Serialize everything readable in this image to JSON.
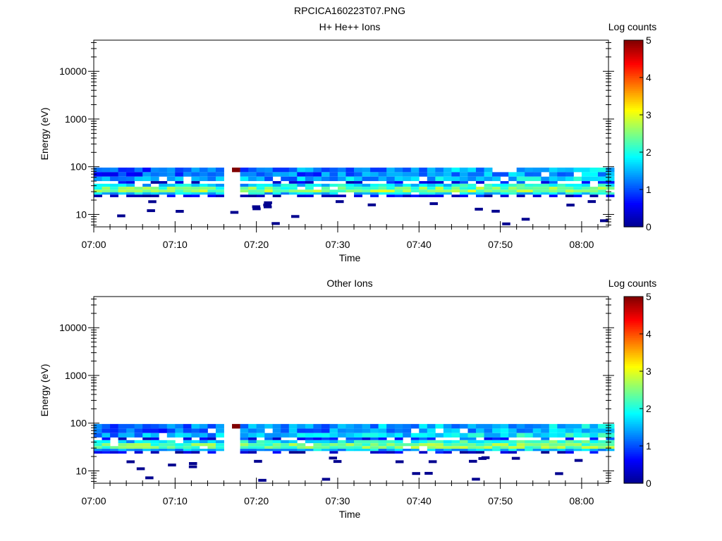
{
  "figure_title": "RPCICA160223T07.PNG",
  "chart_data": [
    {
      "type": "heatmap",
      "title": "H+ He++ Ions",
      "xlabel": "Time",
      "ylabel": "Energy (eV)",
      "x_ticks": [
        "07:00",
        "07:10",
        "07:20",
        "07:30",
        "07:40",
        "07:50",
        "08:00"
      ],
      "x_tick_minutes": [
        0,
        10,
        20,
        30,
        40,
        50,
        60
      ],
      "xlim_minutes": [
        0,
        63.3
      ],
      "y_scale": "log",
      "ylim": [
        5.5,
        45000
      ],
      "y_ticks": [
        "10",
        "100",
        "1000",
        "10000"
      ],
      "y_tick_values": [
        10,
        100,
        1000,
        10000
      ],
      "colorbar_label": "Log counts",
      "colorbar_ticks": [
        "0",
        "1",
        "2",
        "3",
        "4",
        "5"
      ],
      "colorbar_range": [
        0,
        5
      ],
      "colormap": [
        "#00008f",
        "#0000ff",
        "#0080ff",
        "#00ffff",
        "#80ff80",
        "#ffff00",
        "#ff8000",
        "#ff0000",
        "#800000"
      ],
      "grid": false,
      "data_gap_minutes": [
        16.8,
        17.3
      ],
      "energy_bands_eV": [
        {
          "low": 77,
          "high": 96,
          "mean_log_counts": 1.0
        },
        {
          "low": 62,
          "high": 77,
          "mean_log_counts": 0.9
        },
        {
          "low": 50,
          "high": 62,
          "mean_log_counts": 1.2
        },
        {
          "low": 44,
          "high": 50,
          "mean_log_counts": 0.3
        },
        {
          "low": 38,
          "high": 44,
          "mean_log_counts": 1.5
        },
        {
          "low": 33,
          "high": 38,
          "mean_log_counts": 2.3
        },
        {
          "low": 29,
          "high": 33,
          "mean_log_counts": 2.5
        },
        {
          "low": 26,
          "high": 29,
          "mean_log_counts": 1.6
        },
        {
          "low": 23,
          "high": 26,
          "mean_log_counts": 0.4
        }
      ],
      "max_log_counts": 5.0,
      "max_location": {
        "time_minute": 17.5,
        "energy_eV": 85
      }
    },
    {
      "type": "heatmap",
      "title": "Other Ions",
      "xlabel": "Time",
      "ylabel": "Energy (eV)",
      "x_ticks": [
        "07:00",
        "07:10",
        "07:20",
        "07:30",
        "07:40",
        "07:50",
        "08:00"
      ],
      "x_tick_minutes": [
        0,
        10,
        20,
        30,
        40,
        50,
        60
      ],
      "xlim_minutes": [
        0,
        63.3
      ],
      "y_scale": "log",
      "ylim": [
        5.5,
        45000
      ],
      "y_ticks": [
        "10",
        "100",
        "1000",
        "10000"
      ],
      "y_tick_values": [
        10,
        100,
        1000,
        10000
      ],
      "colorbar_label": "Log counts",
      "colorbar_ticks": [
        "0",
        "1",
        "2",
        "3",
        "4",
        "5"
      ],
      "colorbar_range": [
        0,
        5
      ],
      "colormap": [
        "#00008f",
        "#0000ff",
        "#0080ff",
        "#00ffff",
        "#80ff80",
        "#ffff00",
        "#ff8000",
        "#ff0000",
        "#800000"
      ],
      "grid": false,
      "data_gap_minutes": [
        16.8,
        17.3
      ],
      "energy_bands_eV": [
        {
          "low": 77,
          "high": 96,
          "mean_log_counts": 1.1
        },
        {
          "low": 62,
          "high": 77,
          "mean_log_counts": 1.0
        },
        {
          "low": 50,
          "high": 62,
          "mean_log_counts": 1.3
        },
        {
          "low": 44,
          "high": 50,
          "mean_log_counts": 0.5
        },
        {
          "low": 38,
          "high": 44,
          "mean_log_counts": 1.6
        },
        {
          "low": 33,
          "high": 38,
          "mean_log_counts": 2.3
        },
        {
          "low": 29,
          "high": 33,
          "mean_log_counts": 2.4
        },
        {
          "low": 26,
          "high": 29,
          "mean_log_counts": 1.5
        },
        {
          "low": 23,
          "high": 26,
          "mean_log_counts": 0.3
        }
      ],
      "max_log_counts": 5.0,
      "max_location": {
        "time_minute": 17.5,
        "energy_eV": 85
      }
    }
  ]
}
